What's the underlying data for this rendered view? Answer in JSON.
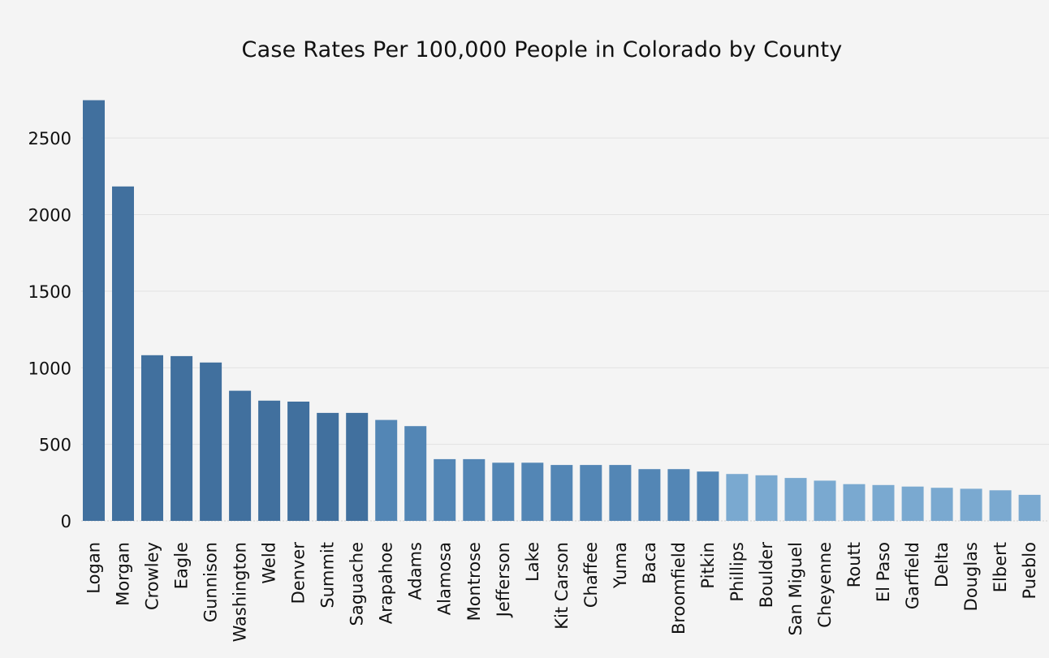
{
  "chart_data": {
    "type": "bar",
    "title": "Case Rates Per 100,000 People in Colorado by County",
    "xlabel": "",
    "ylabel": "",
    "ylim": [
      0,
      2750
    ],
    "yticks": [
      0,
      500,
      1000,
      1500,
      2000,
      2500
    ],
    "grid": true,
    "categories": [
      "Logan",
      "Morgan",
      "Crowley",
      "Eagle",
      "Gunnison",
      "Washington",
      "Weld",
      "Denver",
      "Summit",
      "Saguache",
      "Arapahoe",
      "Adams",
      "Alamosa",
      "Montrose",
      "Jefferson",
      "Lake",
      "Kit Carson",
      "Chaffee",
      "Yuma",
      "Baca",
      "Broomfield",
      "Pitkin",
      "Phillips",
      "Boulder",
      "San Miguel",
      "Cheyenne",
      "Routt",
      "El Paso",
      "Garfield",
      "Delta",
      "Douglas",
      "Elbert",
      "Pueblo"
    ],
    "values": [
      2747,
      2184,
      1082,
      1076,
      1034,
      850,
      785,
      779,
      705,
      705,
      659,
      619,
      403,
      403,
      380,
      380,
      365,
      365,
      365,
      338,
      338,
      322,
      306,
      298,
      280,
      263,
      240,
      234,
      224,
      216,
      210,
      200,
      170
    ],
    "colors": {
      "dark": "#41709e",
      "mid": "#5386b5",
      "light": "#7aa9d0"
    }
  }
}
